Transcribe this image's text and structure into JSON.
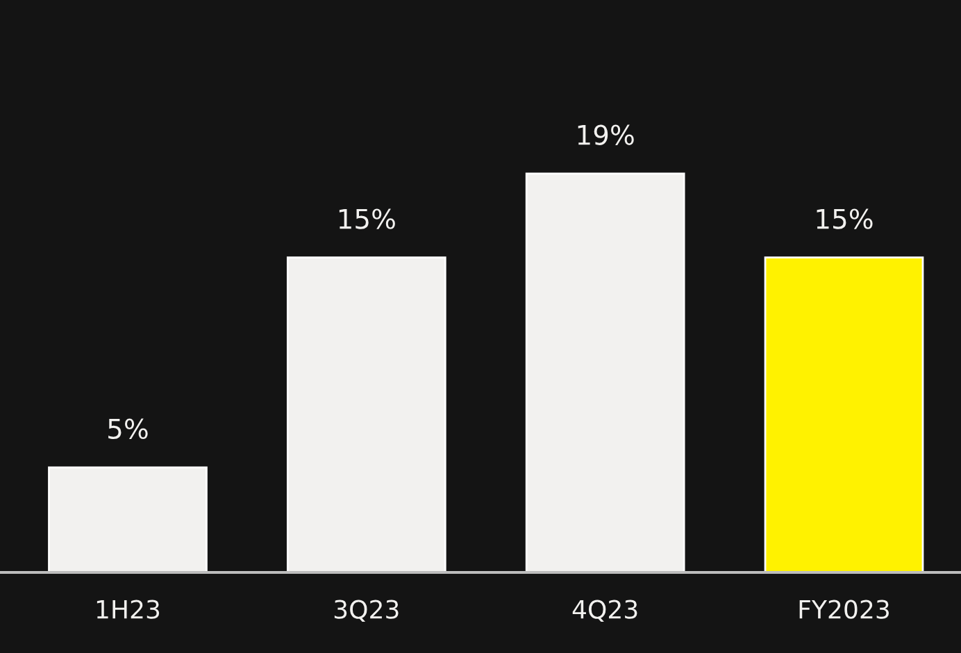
{
  "chart_data": {
    "type": "bar",
    "categories": [
      "1H23",
      "3Q23",
      "4Q23",
      "FY2023"
    ],
    "values": [
      5,
      15,
      19,
      15
    ],
    "colors": [
      "#f2f1ef",
      "#f2f1ef",
      "#f2f1ef",
      "#fff200"
    ],
    "value_labels": [
      "5%",
      "15%",
      "19%",
      "15%"
    ],
    "grid": false,
    "legend": false
  }
}
